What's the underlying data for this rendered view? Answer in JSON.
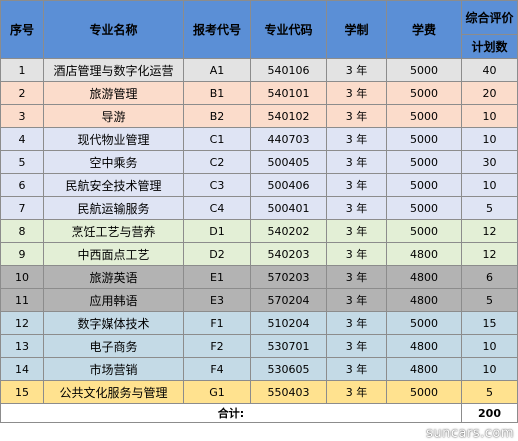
{
  "headers": {
    "seq": "序号",
    "major_name": "专业名称",
    "exam_code": "报考代号",
    "major_code": "专业代码",
    "duration": "学制",
    "tuition": "学费",
    "evaluation": "综合评价",
    "plan_count": "计划数"
  },
  "row_colors": {
    "gray": "#e3e3e3",
    "peach": "#fbdccb",
    "lavender": "#dfe4f4",
    "green": "#e3efd6",
    "darkgray": "#b3b3b3",
    "lightblue": "#c4dae6",
    "yellow": "#ffe28f"
  },
  "rows": [
    {
      "seq": "1",
      "name": "酒店管理与数字化运营",
      "exam": "A1",
      "code": "540106",
      "duration": "3 年",
      "tuition": "5000",
      "plan": "40",
      "color": "gray"
    },
    {
      "seq": "2",
      "name": "旅游管理",
      "exam": "B1",
      "code": "540101",
      "duration": "3 年",
      "tuition": "5000",
      "plan": "20",
      "color": "peach"
    },
    {
      "seq": "3",
      "name": "导游",
      "exam": "B2",
      "code": "540102",
      "duration": "3 年",
      "tuition": "5000",
      "plan": "10",
      "color": "peach"
    },
    {
      "seq": "4",
      "name": "现代物业管理",
      "exam": "C1",
      "code": "440703",
      "duration": "3 年",
      "tuition": "5000",
      "plan": "10",
      "color": "lavender"
    },
    {
      "seq": "5",
      "name": "空中乘务",
      "exam": "C2",
      "code": "500405",
      "duration": "3 年",
      "tuition": "5000",
      "plan": "30",
      "color": "lavender"
    },
    {
      "seq": "6",
      "name": "民航安全技术管理",
      "exam": "C3",
      "code": "500406",
      "duration": "3 年",
      "tuition": "5000",
      "plan": "10",
      "color": "lavender"
    },
    {
      "seq": "7",
      "name": "民航运输服务",
      "exam": "C4",
      "code": "500401",
      "duration": "3 年",
      "tuition": "5000",
      "plan": "5",
      "color": "lavender"
    },
    {
      "seq": "8",
      "name": "烹饪工艺与营养",
      "exam": "D1",
      "code": "540202",
      "duration": "3 年",
      "tuition": "5000",
      "plan": "12",
      "color": "green"
    },
    {
      "seq": "9",
      "name": "中西面点工艺",
      "exam": "D2",
      "code": "540203",
      "duration": "3 年",
      "tuition": "4800",
      "plan": "12",
      "color": "green"
    },
    {
      "seq": "10",
      "name": "旅游英语",
      "exam": "E1",
      "code": "570203",
      "duration": "3 年",
      "tuition": "4800",
      "plan": "6",
      "color": "darkgray"
    },
    {
      "seq": "11",
      "name": "应用韩语",
      "exam": "E3",
      "code": "570204",
      "duration": "3 年",
      "tuition": "4800",
      "plan": "5",
      "color": "darkgray"
    },
    {
      "seq": "12",
      "name": "数字媒体技术",
      "exam": "F1",
      "code": "510204",
      "duration": "3 年",
      "tuition": "5000",
      "plan": "15",
      "color": "lightblue"
    },
    {
      "seq": "13",
      "name": "电子商务",
      "exam": "F2",
      "code": "530701",
      "duration": "3 年",
      "tuition": "4800",
      "plan": "10",
      "color": "lightblue"
    },
    {
      "seq": "14",
      "name": "市场营销",
      "exam": "F4",
      "code": "530605",
      "duration": "3 年",
      "tuition": "4800",
      "plan": "10",
      "color": "lightblue"
    },
    {
      "seq": "15",
      "name": "公共文化服务与管理",
      "exam": "G1",
      "code": "550403",
      "duration": "3 年",
      "tuition": "5000",
      "plan": "5",
      "color": "yellow"
    }
  ],
  "total": {
    "label": "合计:",
    "value": "200"
  },
  "watermark": "suncars.com"
}
